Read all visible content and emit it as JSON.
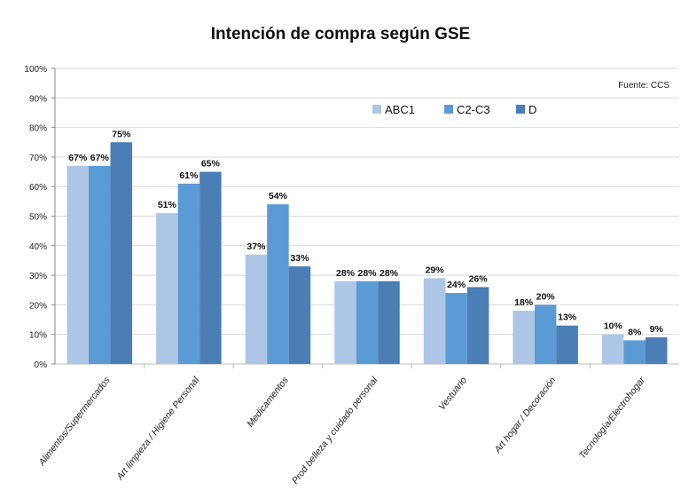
{
  "chart_data": {
    "type": "bar",
    "title": "Intención de compra según GSE",
    "source": "Fuente: CCS",
    "xlabel": "",
    "ylabel": "",
    "ylim": [
      0,
      100
    ],
    "yticks": [
      "0%",
      "10%",
      "20%",
      "30%",
      "40%",
      "50%",
      "60%",
      "70%",
      "80%",
      "90%",
      "100%"
    ],
    "grid": true,
    "legend_position": "top-right",
    "categories": [
      "Alimentos/Supermercados",
      "Art limpieza / Higiene Personal",
      "Medicamentos",
      "Prod belleza y cuidado personal",
      "Vestuario",
      "Art hogar / Decoración",
      "Tecnología/Electrohogar"
    ],
    "series": [
      {
        "name": "ABC1",
        "color": "#aec6e5",
        "values": [
          67,
          51,
          37,
          28,
          29,
          18,
          10
        ]
      },
      {
        "name": "C2-C3",
        "color": "#5b9bd5",
        "values": [
          67,
          61,
          54,
          28,
          24,
          20,
          8
        ]
      },
      {
        "name": "D",
        "color": "#4a7eb5",
        "values": [
          75,
          65,
          33,
          28,
          26,
          13,
          9
        ]
      }
    ]
  }
}
